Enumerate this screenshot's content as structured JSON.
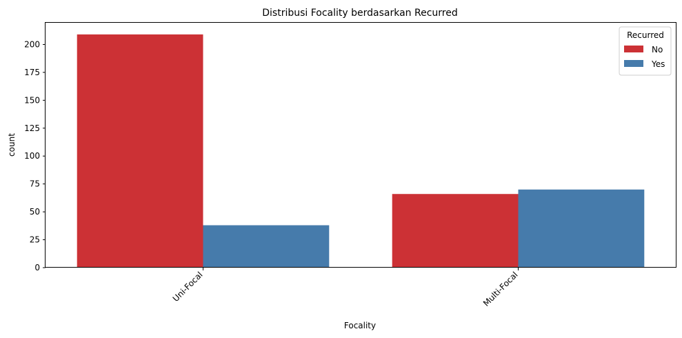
{
  "chart_data": {
    "type": "bar",
    "title": "Distribusi Focality berdasarkan Recurred",
    "xlabel": "Focality",
    "ylabel": "count",
    "categories": [
      "Uni-Focal",
      "Multi-Focal"
    ],
    "series": [
      {
        "name": "No",
        "color": "#cc3135",
        "values": [
          209,
          66
        ]
      },
      {
        "name": "Yes",
        "color": "#467bab",
        "values": [
          38,
          70
        ]
      }
    ],
    "ylim": [
      0,
      219.45
    ],
    "yticks": [
      0,
      25,
      50,
      75,
      100,
      125,
      150,
      175,
      200
    ],
    "legend": {
      "title": "Recurred",
      "placement": "top-right"
    },
    "grid": false
  }
}
